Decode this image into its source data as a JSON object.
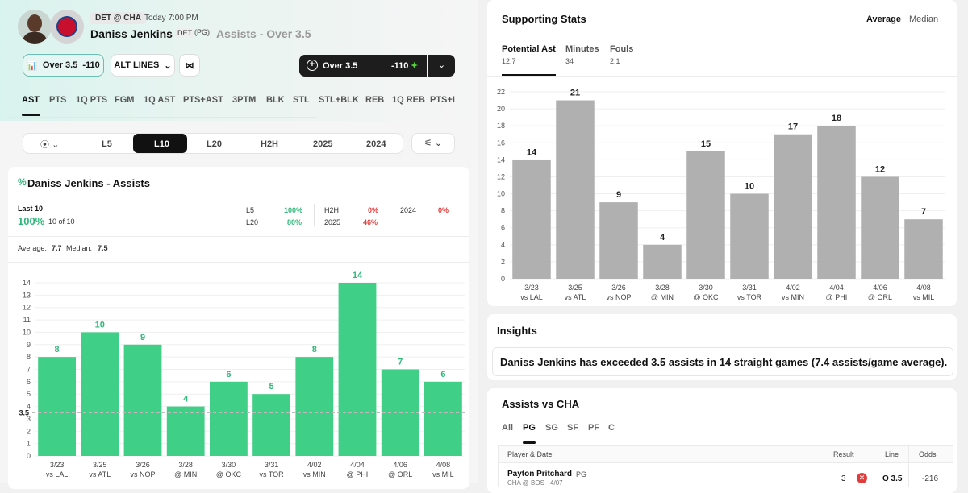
{
  "header": {
    "matchup": "DET @ CHA",
    "game_time": "Today 7:00 PM",
    "player_name": "Daniss Jenkins",
    "team": "DET",
    "position": "(PG)",
    "prop_title": "Assists - Over 3.5"
  },
  "controls": {
    "selection_label": "Over 3.5",
    "selection_odds": "-110",
    "alt_lines_label": "ALT LINES",
    "bet_label": "Over 3.5",
    "bet_odds": "-110"
  },
  "stat_tabs": [
    "AST",
    "PTS",
    "1Q PTS",
    "FGM",
    "1Q AST",
    "PTS+AST",
    "3PTM",
    "BLK",
    "STL",
    "STL+BLK",
    "REB",
    "1Q REB",
    "PTS+I"
  ],
  "ranges": [
    "L5",
    "L10",
    "L20",
    "H2H",
    "2025",
    "2024"
  ],
  "main_card": {
    "title": "Daniss Jenkins - Assists",
    "last_label": "Last 10",
    "last_pct": "100%",
    "last_count": "10 of 10",
    "splits": [
      {
        "label": "L5",
        "value": "100%"
      },
      {
        "label": "L20",
        "value": "80%"
      },
      {
        "label": "H2H",
        "value": "0%"
      },
      {
        "label": "2025",
        "value": "46%"
      },
      {
        "label": "2024",
        "value": "0%"
      }
    ],
    "average_label": "Average:",
    "average_value": "7.7",
    "median_label": "Median:",
    "median_value": "7.5",
    "line_label": "3.5"
  },
  "supporting": {
    "title": "Supporting Stats",
    "toggle_average": "Average",
    "toggle_median": "Median",
    "tabs": [
      {
        "label": "Potential Ast",
        "value": "12.7"
      },
      {
        "label": "Minutes",
        "value": "34"
      },
      {
        "label": "Fouls",
        "value": "2.1"
      }
    ]
  },
  "insights": {
    "title": "Insights",
    "text": "Daniss Jenkins has exceeded 3.5 assists in 14 straight games (7.4 assists/game average)."
  },
  "assists_vs": {
    "title": "Assists vs CHA",
    "position_tabs": [
      "All",
      "PG",
      "SG",
      "SF",
      "PF",
      "C"
    ],
    "columns": {
      "player": "Player & Date",
      "result": "Result",
      "line": "Line",
      "odds": "Odds"
    },
    "row": {
      "player": "Payton Pritchard",
      "pos": "PG",
      "sub": "CHA @ BOS · 4/07",
      "result": "3",
      "line": "O 3.5",
      "odds": "-216"
    }
  },
  "colors": {
    "accent_green": "#3fcf86",
    "bar_gray": "#b0b0b0",
    "red": "#e23b3b"
  },
  "chart_data": [
    {
      "type": "bar",
      "categories": [
        "3/23 vs LAL",
        "3/25 vs ATL",
        "3/26 vs NOP",
        "3/28 @ MIN",
        "3/30 @ OKC",
        "3/31 vs TOR",
        "4/02 vs MIN",
        "4/04 @ PHI",
        "4/06 @ ORL",
        "4/08 vs MIL"
      ],
      "values": [
        8,
        10,
        9,
        4,
        6,
        5,
        8,
        14,
        7,
        6
      ],
      "ylim": [
        0,
        14
      ],
      "yticks": [
        0,
        1,
        2,
        3,
        4,
        5,
        6,
        7,
        8,
        9,
        10,
        11,
        12,
        13,
        14
      ],
      "line": 3.5
    },
    {
      "type": "bar",
      "categories": [
        "3/23 vs LAL",
        "3/25 vs ATL",
        "3/26 vs NOP",
        "3/28 @ MIN",
        "3/30 @ OKC",
        "3/31 vs TOR",
        "4/02 vs MIN",
        "4/04 @ PHI",
        "4/06 @ ORL",
        "4/08 vs MIL"
      ],
      "values": [
        14,
        21,
        9,
        4,
        15,
        10,
        17,
        18,
        12,
        7
      ],
      "ylim": [
        0,
        22
      ],
      "yticks": [
        0,
        2,
        4,
        6,
        8,
        10,
        12,
        14,
        16,
        18,
        20,
        22
      ]
    }
  ]
}
